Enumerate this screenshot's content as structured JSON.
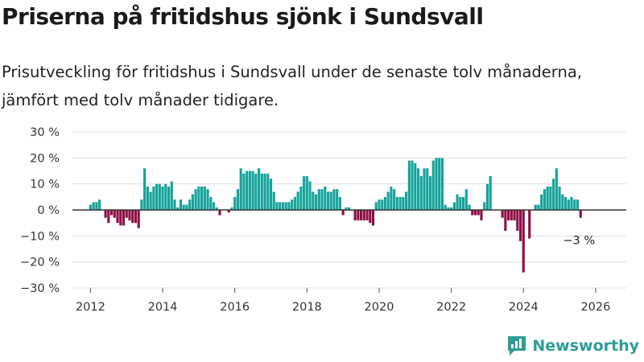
{
  "title": "Priserna på fritidshus sjönk i Sundsvall",
  "subtitle": "Prisutveckling för fritidshus i Sundsvall under de senaste tolv månaderna, jämfört med tolv månader tidigare.",
  "brand": {
    "name": "Newsworthy",
    "icon": "bar-chart-icon",
    "color": "#2e9c96"
  },
  "colors": {
    "positive": "#15a39a",
    "negative": "#8e0f45",
    "grid": "#dddddd",
    "zero_line": "#333333"
  },
  "chart_data": {
    "type": "bar",
    "title": "Priserna på fritidshus sjönk i Sundsvall",
    "xlabel": "",
    "ylabel": "",
    "ylim": [
      -30,
      30
    ],
    "xlim": [
      2011.5,
      2026.85
    ],
    "y_ticks": [
      30,
      20,
      10,
      0,
      -10,
      -20,
      -30
    ],
    "y_tick_labels": [
      "30 %",
      "20 %",
      "10 %",
      "0 %",
      "−10 %",
      "−20 %",
      "−30 %"
    ],
    "x_ticks": [
      2012,
      2014,
      2016,
      2018,
      2020,
      2022,
      2024,
      2026
    ],
    "x_tick_labels": [
      "2012",
      "2014",
      "2016",
      "2018",
      "2020",
      "2022",
      "2024",
      "2026"
    ],
    "start": {
      "year": 2012,
      "month": 1
    },
    "unit": "%",
    "values": [
      2,
      3,
      3,
      4,
      0,
      -3,
      -5,
      -2,
      -3,
      -5,
      -6,
      -6,
      -3,
      -4,
      -5,
      -5,
      -7,
      4,
      16,
      9,
      7,
      9,
      10,
      10,
      9,
      10,
      9,
      11,
      4,
      1,
      4,
      2,
      2,
      4,
      6,
      8,
      9,
      9,
      9,
      8,
      5,
      3,
      1,
      -2,
      0,
      0,
      -1,
      1,
      5,
      8,
      16,
      14,
      15,
      15,
      15,
      14,
      16,
      14,
      14,
      14,
      12,
      7,
      3,
      3,
      3,
      3,
      3,
      4,
      5,
      7,
      9,
      13,
      13,
      11,
      7,
      6,
      8,
      8,
      9,
      7,
      7,
      8,
      8,
      5,
      -2,
      1,
      1,
      0,
      -4,
      -4,
      -4,
      -4,
      -4,
      -5,
      -6,
      3,
      4,
      4,
      5,
      7,
      9,
      8,
      5,
      5,
      5,
      7,
      19,
      19,
      18,
      16,
      13,
      16,
      16,
      13,
      19,
      20,
      20,
      20,
      2,
      1,
      1,
      3,
      6,
      5,
      5,
      8,
      2,
      -2,
      -2,
      -2,
      -4,
      3,
      10,
      13,
      0,
      0,
      0,
      -3,
      -8,
      -4,
      -4,
      -4,
      -8,
      -12,
      -24,
      0,
      -11,
      0,
      2,
      2,
      6,
      8,
      9,
      9,
      12,
      16,
      9,
      6,
      5,
      4,
      5,
      4,
      4,
      -3
    ],
    "annotations": [
      {
        "label": "−3 %",
        "target": "last-value"
      }
    ]
  }
}
